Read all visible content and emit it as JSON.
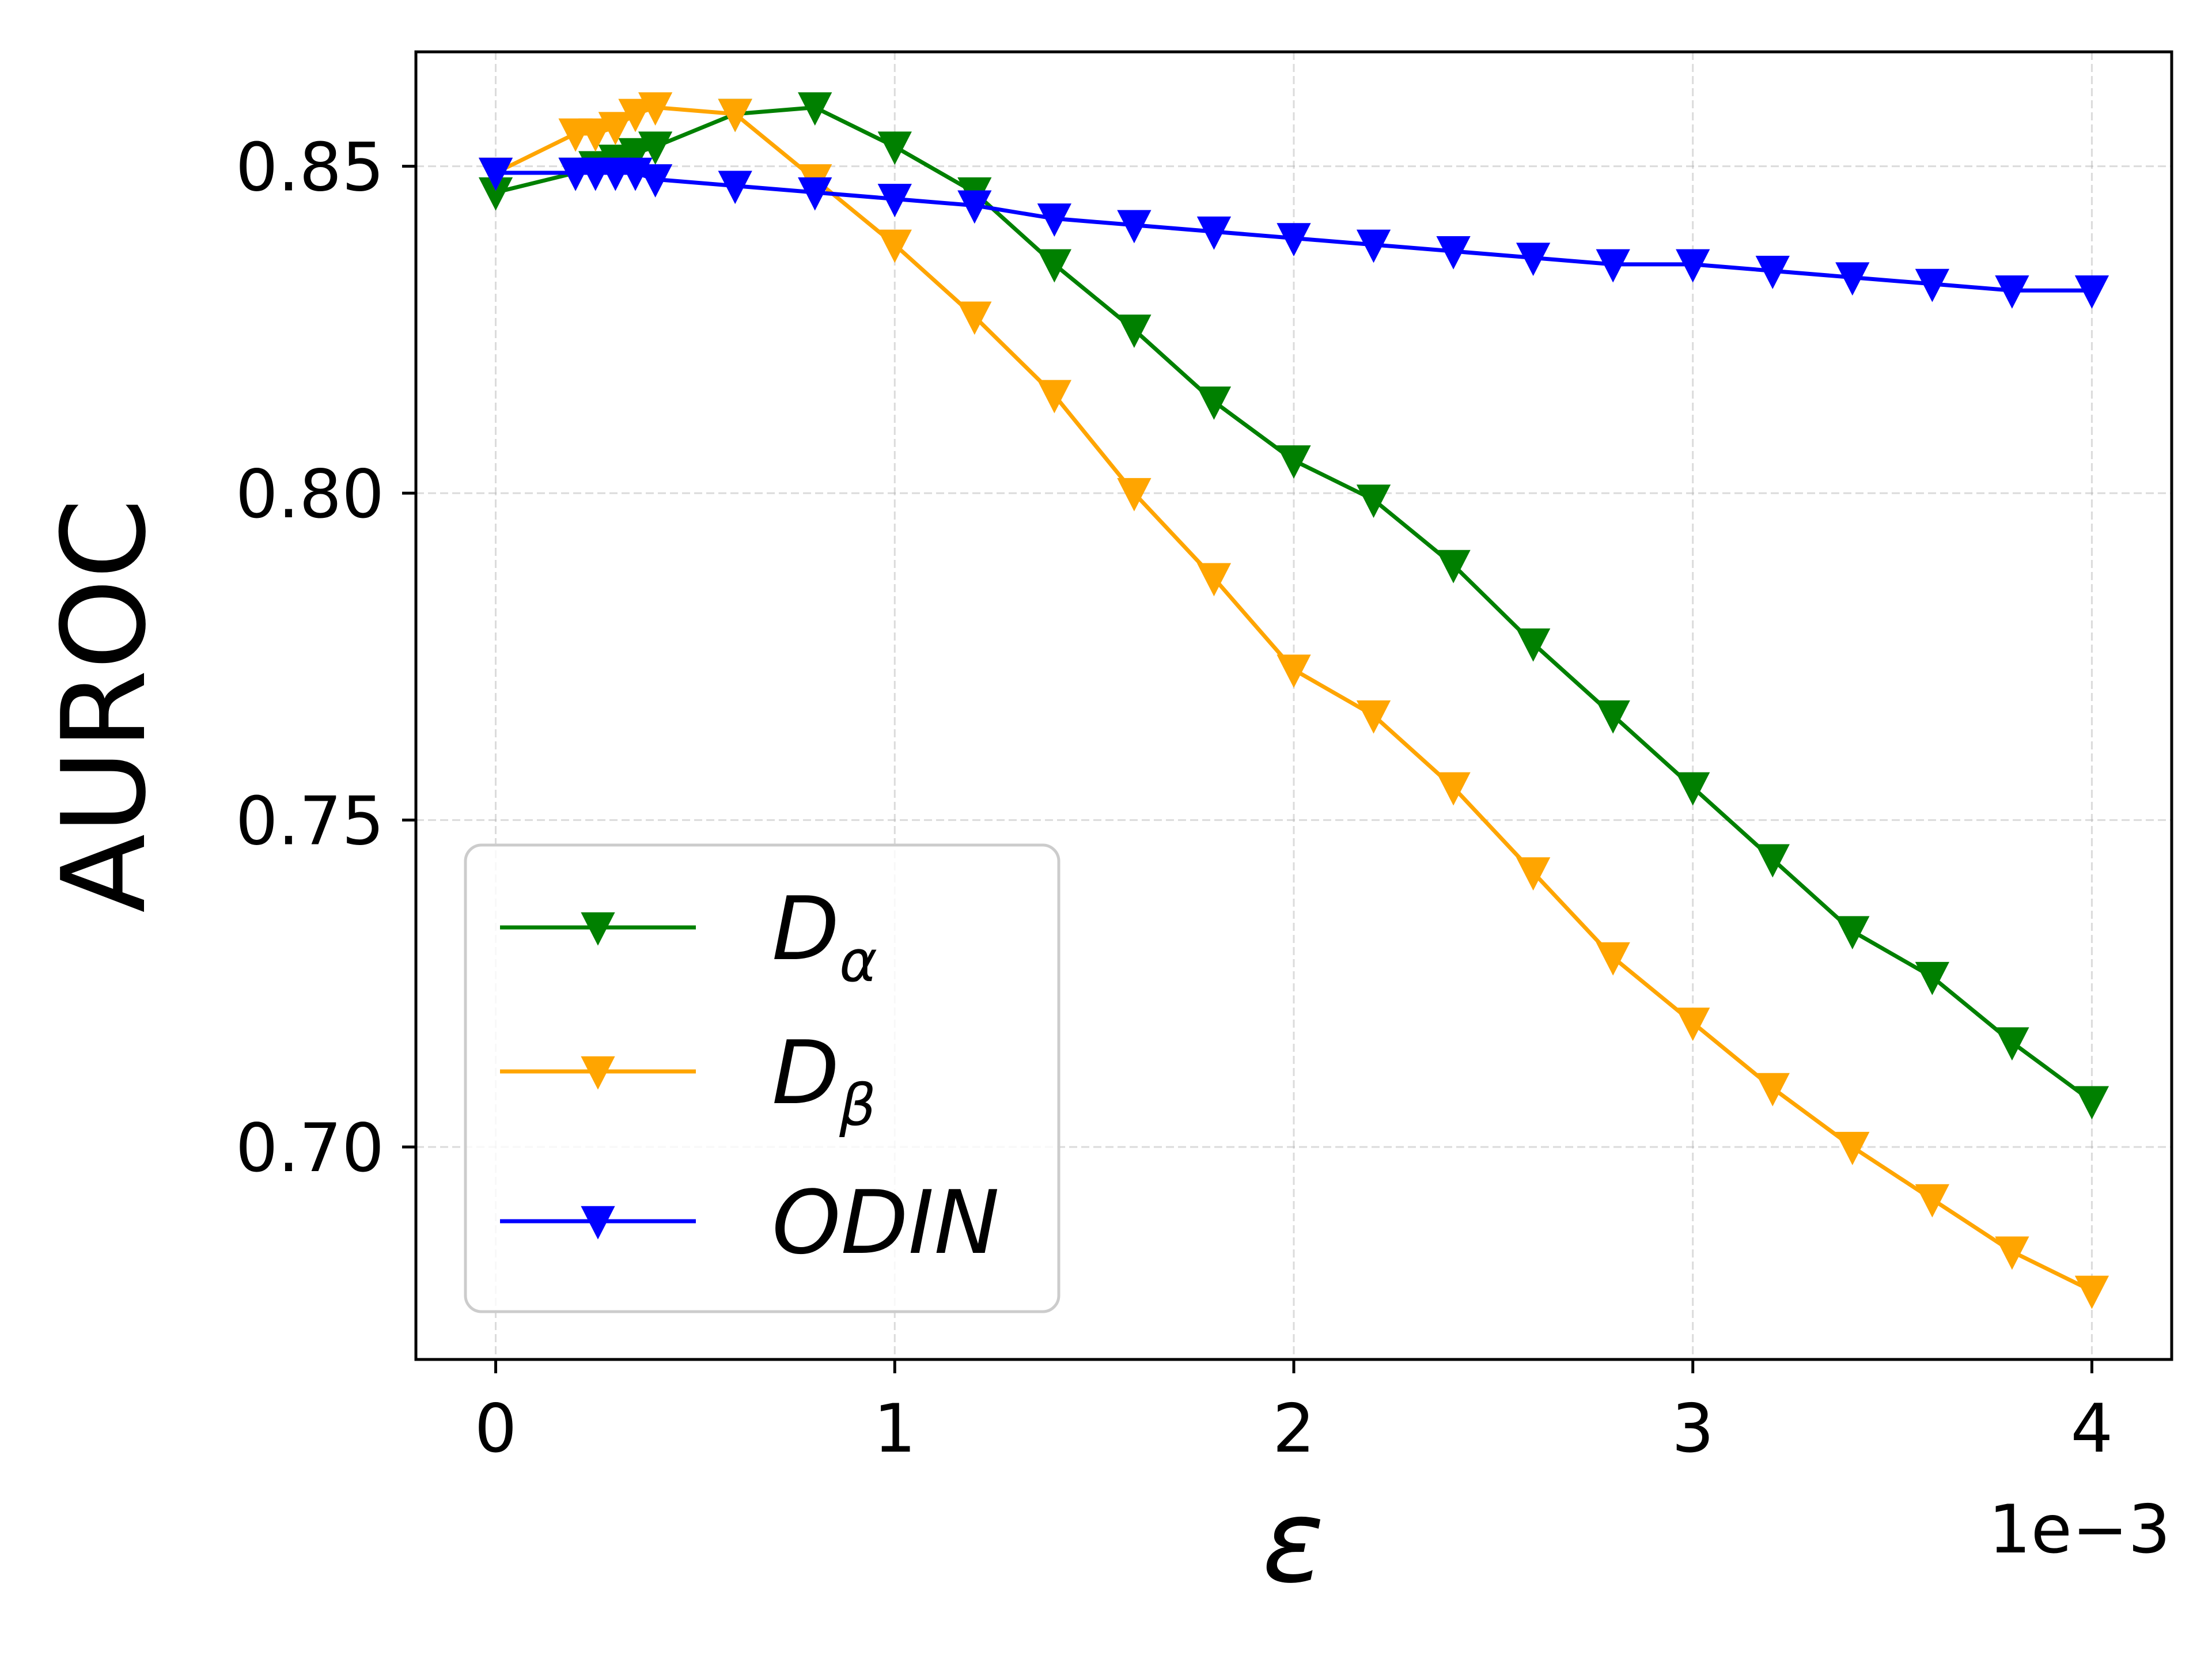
{
  "chart_data": {
    "type": "line",
    "xlabel": "ε",
    "ylabel": "AUROC",
    "x_offset_label": "1e−3",
    "x_scale": 0.001,
    "xlim": [
      -0.2,
      4.2
    ],
    "ylim": [
      0.6675,
      0.8675
    ],
    "xticks": [
      0,
      1,
      2,
      3,
      4
    ],
    "xtick_labels": [
      "0",
      "1",
      "2",
      "3",
      "4"
    ],
    "yticks": [
      0.7,
      0.75,
      0.8,
      0.85
    ],
    "ytick_labels": [
      "0.70",
      "0.75",
      "0.80",
      "0.85"
    ],
    "grid": true,
    "legend_position": "lower-left",
    "marker": "triangle-down",
    "series": [
      {
        "name": "D",
        "subscript": "α",
        "color": "#008000",
        "x": [
          0,
          0.2,
          0.25,
          0.3,
          0.35,
          0.4,
          0.6,
          0.8,
          1.0,
          1.2,
          1.4,
          1.6,
          1.8,
          2.0,
          2.2,
          2.4,
          2.6,
          2.8,
          3.0,
          3.2,
          3.4,
          3.6,
          3.8,
          4.0
        ],
        "values": [
          0.846,
          0.849,
          0.85,
          0.851,
          0.852,
          0.853,
          0.858,
          0.859,
          0.853,
          0.846,
          0.835,
          0.825,
          0.814,
          0.805,
          0.799,
          0.789,
          0.777,
          0.766,
          0.755,
          0.744,
          0.733,
          0.726,
          0.716,
          0.707
        ]
      },
      {
        "name": "D",
        "subscript": "β",
        "color": "#FFA500",
        "x": [
          0,
          0.2,
          0.25,
          0.3,
          0.35,
          0.4,
          0.6,
          0.8,
          1.0,
          1.2,
          1.4,
          1.6,
          1.8,
          2.0,
          2.2,
          2.4,
          2.6,
          2.8,
          3.0,
          3.2,
          3.4,
          3.6,
          3.8,
          4.0
        ],
        "values": [
          0.849,
          0.855,
          0.855,
          0.856,
          0.858,
          0.859,
          0.858,
          0.848,
          0.838,
          0.827,
          0.815,
          0.8,
          0.787,
          0.773,
          0.766,
          0.755,
          0.742,
          0.729,
          0.719,
          0.709,
          0.7,
          0.692,
          0.684,
          0.678
        ]
      },
      {
        "name": "ODIN",
        "subscript": "",
        "color": "#0000FF",
        "x": [
          0,
          0.2,
          0.25,
          0.3,
          0.35,
          0.4,
          0.6,
          0.8,
          1.0,
          1.2,
          1.4,
          1.6,
          1.8,
          2.0,
          2.2,
          2.4,
          2.6,
          2.8,
          3.0,
          3.2,
          3.4,
          3.6,
          3.8,
          4.0
        ],
        "values": [
          0.849,
          0.849,
          0.849,
          0.849,
          0.849,
          0.848,
          0.847,
          0.846,
          0.845,
          0.844,
          0.842,
          0.841,
          0.84,
          0.839,
          0.838,
          0.837,
          0.836,
          0.835,
          0.835,
          0.834,
          0.833,
          0.832,
          0.831,
          0.831
        ]
      }
    ]
  }
}
